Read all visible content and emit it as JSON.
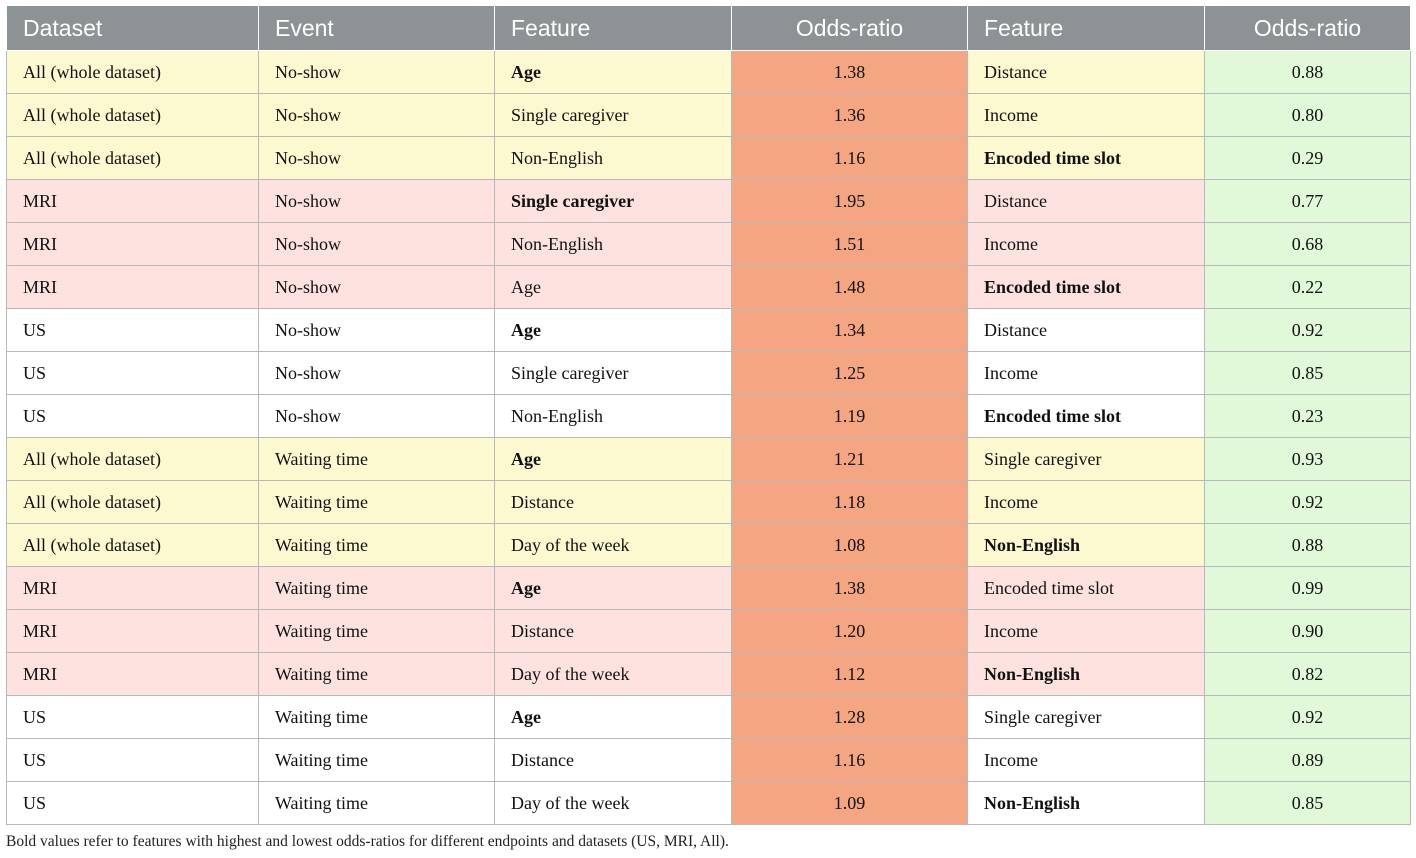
{
  "colors": {
    "header_bg": "#8d9295",
    "all_bg": "#fcf8cf",
    "mri_bg": "#fde2df",
    "us_bg": "#ffffff",
    "high_or_bg": "#f4a582",
    "low_or_bg": "#e1f9d9"
  },
  "headers": [
    "Dataset",
    "Event",
    "Feature",
    "Odds-ratio",
    "Feature",
    "Odds-ratio"
  ],
  "rows": [
    {
      "group": "all",
      "dataset": "All (whole dataset)",
      "event": "No-show",
      "feat1": "Age",
      "b1": true,
      "or1": "1.38",
      "feat2": "Distance",
      "b2": false,
      "or2": "0.88"
    },
    {
      "group": "all",
      "dataset": "All (whole dataset)",
      "event": "No-show",
      "feat1": "Single caregiver",
      "b1": false,
      "or1": "1.36",
      "feat2": "Income",
      "b2": false,
      "or2": "0.80"
    },
    {
      "group": "all",
      "dataset": "All (whole dataset)",
      "event": "No-show",
      "feat1": "Non-English",
      "b1": false,
      "or1": "1.16",
      "feat2": "Encoded time slot",
      "b2": true,
      "or2": "0.29"
    },
    {
      "group": "mri",
      "dataset": "MRI",
      "event": "No-show",
      "feat1": "Single caregiver",
      "b1": true,
      "or1": "1.95",
      "feat2": "Distance",
      "b2": false,
      "or2": "0.77"
    },
    {
      "group": "mri",
      "dataset": "MRI",
      "event": "No-show",
      "feat1": "Non-English",
      "b1": false,
      "or1": "1.51",
      "feat2": "Income",
      "b2": false,
      "or2": "0.68"
    },
    {
      "group": "mri",
      "dataset": "MRI",
      "event": "No-show",
      "feat1": "Age",
      "b1": false,
      "or1": "1.48",
      "feat2": "Encoded time slot",
      "b2": true,
      "or2": "0.22"
    },
    {
      "group": "us",
      "dataset": "US",
      "event": "No-show",
      "feat1": "Age",
      "b1": true,
      "or1": "1.34",
      "feat2": "Distance",
      "b2": false,
      "or2": "0.92"
    },
    {
      "group": "us",
      "dataset": "US",
      "event": "No-show",
      "feat1": "Single caregiver",
      "b1": false,
      "or1": "1.25",
      "feat2": "Income",
      "b2": false,
      "or2": "0.85"
    },
    {
      "group": "us",
      "dataset": "US",
      "event": "No-show",
      "feat1": "Non-English",
      "b1": false,
      "or1": "1.19",
      "feat2": "Encoded time slot",
      "b2": true,
      "or2": "0.23"
    },
    {
      "group": "all",
      "dataset": "All (whole dataset)",
      "event": "Waiting time",
      "feat1": "Age",
      "b1": true,
      "or1": "1.21",
      "feat2": "Single caregiver",
      "b2": false,
      "or2": "0.93"
    },
    {
      "group": "all",
      "dataset": "All (whole dataset)",
      "event": "Waiting time",
      "feat1": "Distance",
      "b1": false,
      "or1": "1.18",
      "feat2": "Income",
      "b2": false,
      "or2": "0.92"
    },
    {
      "group": "all",
      "dataset": "All (whole dataset)",
      "event": "Waiting time",
      "feat1": "Day of the week",
      "b1": false,
      "or1": "1.08",
      "feat2": "Non-English",
      "b2": true,
      "or2": "0.88"
    },
    {
      "group": "mri",
      "dataset": "MRI",
      "event": "Waiting time",
      "feat1": "Age",
      "b1": true,
      "or1": "1.38",
      "feat2": "Encoded time slot",
      "b2": false,
      "or2": "0.99"
    },
    {
      "group": "mri",
      "dataset": "MRI",
      "event": "Waiting time",
      "feat1": "Distance",
      "b1": false,
      "or1": "1.20",
      "feat2": "Income",
      "b2": false,
      "or2": "0.90"
    },
    {
      "group": "mri",
      "dataset": "MRI",
      "event": "Waiting time",
      "feat1": "Day of the week",
      "b1": false,
      "or1": "1.12",
      "feat2": "Non-English",
      "b2": true,
      "or2": "0.82"
    },
    {
      "group": "us",
      "dataset": "US",
      "event": "Waiting time",
      "feat1": "Age",
      "b1": true,
      "or1": "1.28",
      "feat2": "Single caregiver",
      "b2": false,
      "or2": "0.92"
    },
    {
      "group": "us",
      "dataset": "US",
      "event": "Waiting time",
      "feat1": "Distance",
      "b1": false,
      "or1": "1.16",
      "feat2": "Income",
      "b2": false,
      "or2": "0.89"
    },
    {
      "group": "us",
      "dataset": "US",
      "event": "Waiting time",
      "feat1": "Day of the week",
      "b1": false,
      "or1": "1.09",
      "feat2": "Non-English",
      "b2": true,
      "or2": "0.85"
    }
  ],
  "footnote": "Bold values refer to features with highest and lowest odds-ratios for different endpoints and datasets (US, MRI, All)."
}
